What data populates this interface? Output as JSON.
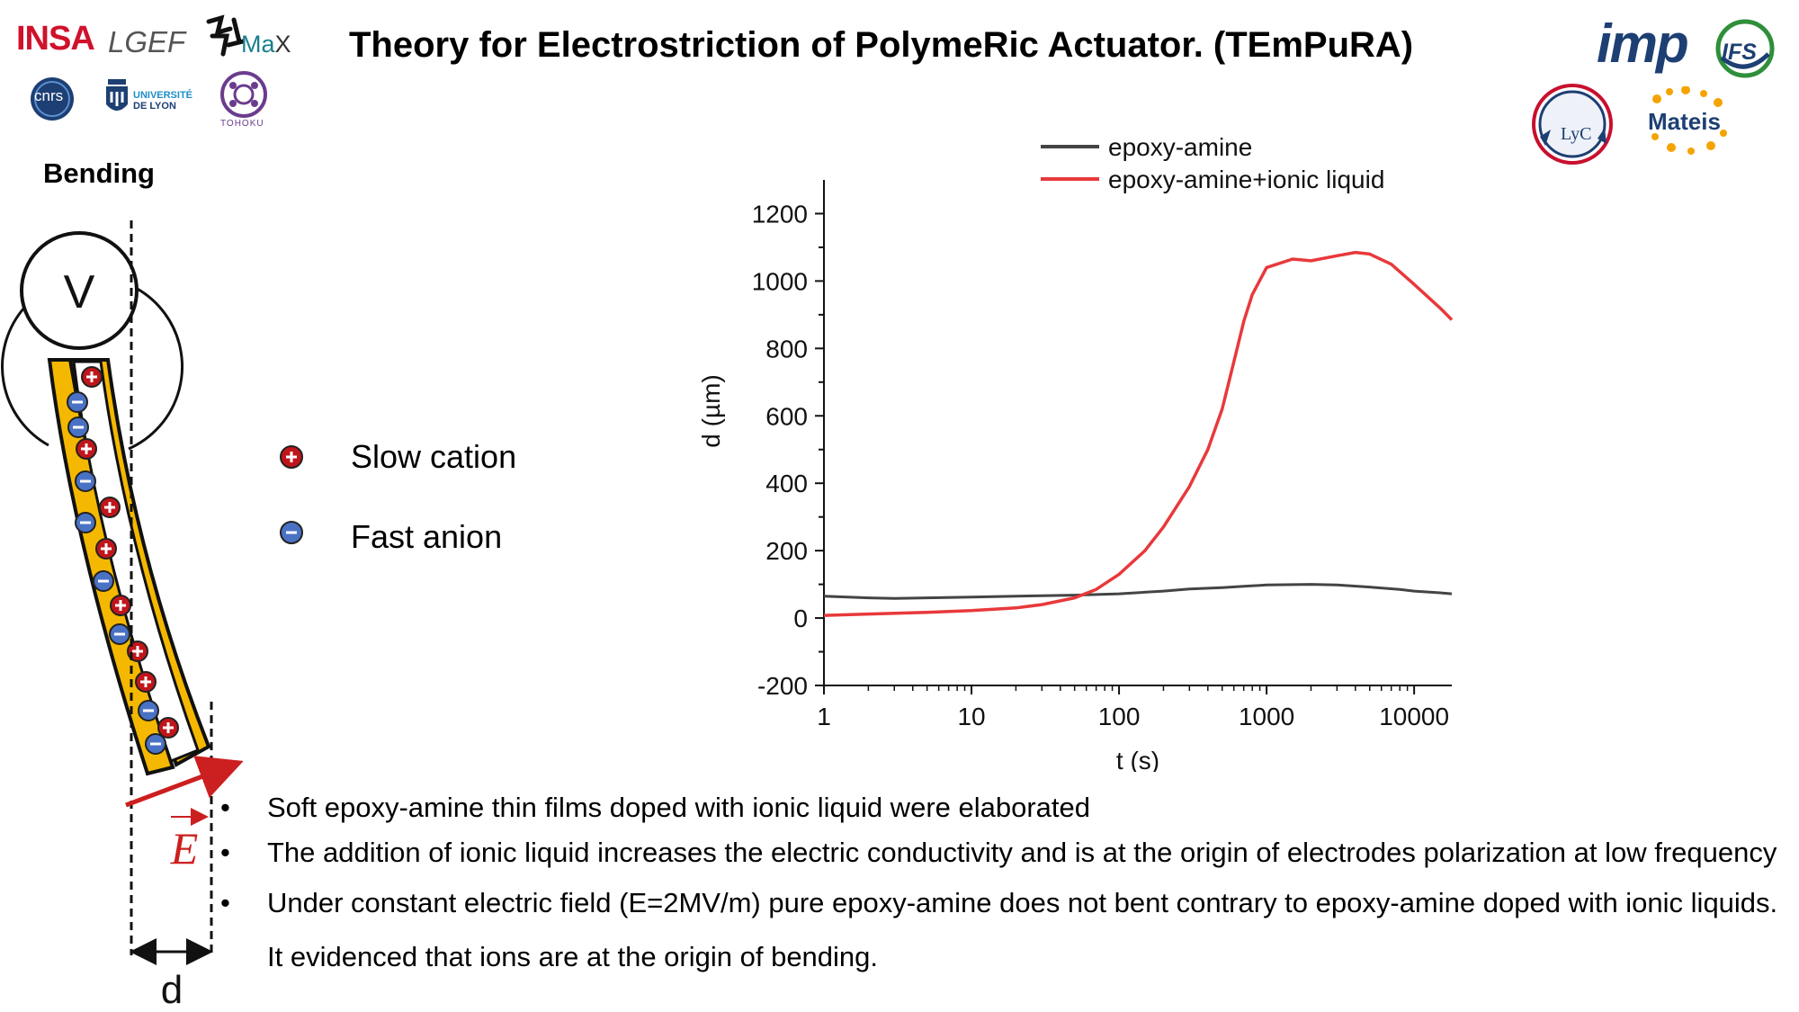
{
  "logos": {
    "insa": "INSA",
    "lgef": "LGEF",
    "elymax": "Ma",
    "elymax_x": "X",
    "cnrs": "cnrs",
    "universite_line1": "UNIVERSITÉ",
    "universite_line2": "DE LYON",
    "tohoku": "TOHOKU",
    "imp": "imp",
    "ifs": "IFS",
    "lyc": "LyC",
    "mateis": "Mateis"
  },
  "title": "Theory for Electrostriction of PolymeRic Actuator. (TEmPuRA)",
  "diagram": {
    "heading": "Bending",
    "voltage": "V",
    "field": "E",
    "distance": "d"
  },
  "ion_legend": {
    "cation": "Slow cation",
    "anion": "Fast anion"
  },
  "bullets": [
    "Soft epoxy-amine thin films doped with ionic liquid were elaborated",
    "The addition of ionic liquid increases the electric conductivity and is at the origin of electrodes polarization at low frequency",
    "Under constant electric field (E=2MV/m) pure epoxy-amine does not bent contrary to epoxy-amine doped with ionic liquids. It evidenced that ions are at the origin of bending."
  ],
  "colors": {
    "epoxy": "#444444",
    "ionic": "#e8393b",
    "electrode": "#f5b800",
    "cation": "#c0151b",
    "anion": "#4a72c4",
    "arrow": "#cc1f1f"
  },
  "chart_data": {
    "type": "line",
    "xscale": "log",
    "xlabel": "t (s)",
    "ylabel": "d (µm)",
    "xlim": [
      1,
      18000
    ],
    "ylim": [
      -200,
      1300
    ],
    "xticks": [
      1,
      10,
      100,
      1000,
      10000
    ],
    "xtick_labels": [
      "1",
      "10",
      "100",
      "1000",
      "10000"
    ],
    "yticks": [
      -200,
      0,
      200,
      400,
      600,
      800,
      1000,
      1200
    ],
    "ytick_labels": [
      "-200",
      "0",
      "200",
      "400",
      "600",
      "800",
      "1000",
      "1200"
    ],
    "legend_position": "top-left",
    "series": [
      {
        "name": "epoxy-amine",
        "color": "#444444",
        "x": [
          1,
          2,
          3,
          5,
          10,
          20,
          50,
          100,
          200,
          300,
          500,
          700,
          1000,
          2000,
          3000,
          5000,
          8000,
          10000,
          15000,
          18000
        ],
        "y": [
          65,
          60,
          58,
          60,
          62,
          65,
          68,
          72,
          80,
          86,
          90,
          94,
          98,
          100,
          98,
          92,
          85,
          80,
          75,
          72
        ]
      },
      {
        "name": "epoxy-amine+ionic liquid",
        "color": "#e8393b",
        "x": [
          1,
          2,
          5,
          10,
          20,
          30,
          50,
          70,
          100,
          150,
          200,
          300,
          400,
          500,
          600,
          700,
          800,
          1000,
          1500,
          2000,
          3000,
          4000,
          5000,
          7000,
          10000,
          15000,
          18000
        ],
        "y": [
          8,
          12,
          17,
          22,
          30,
          40,
          60,
          85,
          130,
          200,
          270,
          390,
          500,
          620,
          760,
          880,
          960,
          1040,
          1065,
          1060,
          1075,
          1085,
          1080,
          1050,
          990,
          920,
          885
        ]
      }
    ]
  }
}
